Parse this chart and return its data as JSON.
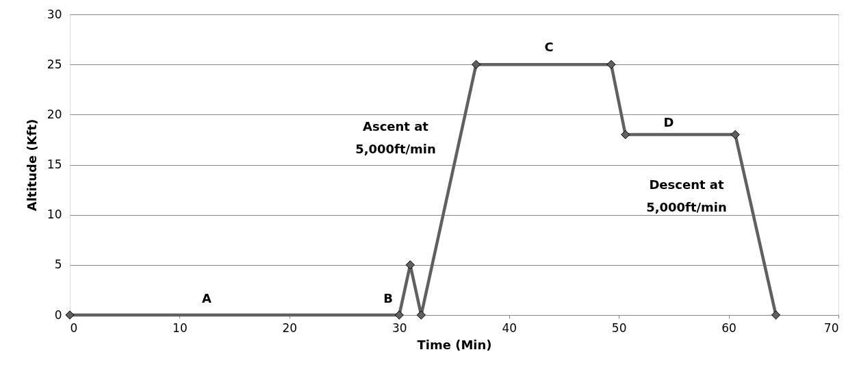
{
  "chart_data": {
    "type": "line",
    "xlabel": "Time (Min)",
    "ylabel": "Altitude (Kft)",
    "x": [
      0,
      30,
      31,
      32,
      37,
      49.3,
      50.6,
      60.6,
      64.3
    ],
    "series": [
      {
        "color": "#606060",
        "values": [
          0,
          0,
          5,
          0,
          25,
          25,
          18,
          18,
          0
        ]
      }
    ],
    "xlim": [
      0,
      70
    ],
    "xticks": [
      0,
      10,
      20,
      30,
      40,
      50,
      60,
      70
    ],
    "ylim": [
      0,
      30
    ],
    "yticks": [
      0,
      5,
      10,
      15,
      20,
      25,
      30
    ],
    "grid": "y",
    "marker": "diamond",
    "line_style": "solid",
    "annotations": [
      "A",
      "B",
      "C",
      "D",
      "Ascent at\n5,000ft/min",
      "Descent at\n5,000ft/min"
    ]
  }
}
